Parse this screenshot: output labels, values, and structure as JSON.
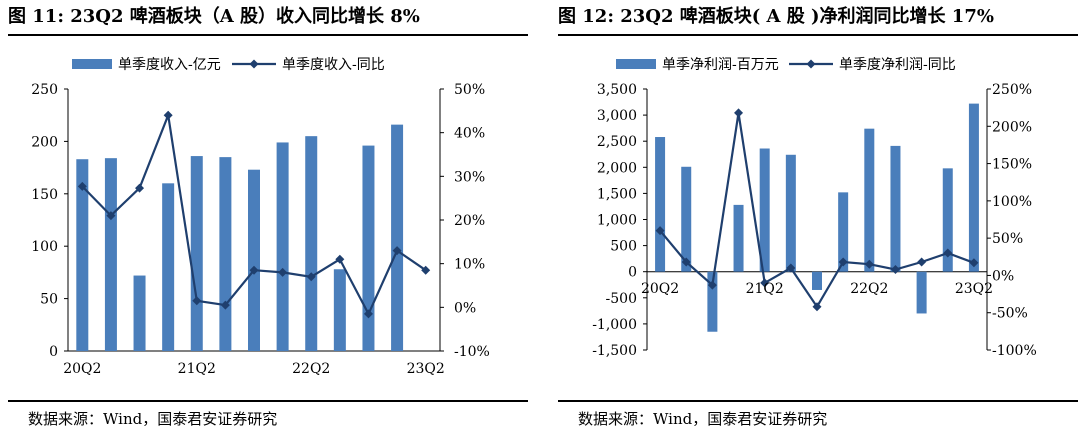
{
  "panels": [
    {
      "title": "图 11:  23Q2 啤酒板块（A 股）收入同比增长 8%",
      "source": "数据来源：Wind，国泰君安证券研究",
      "chart_data": {
        "type": "bar",
        "categories": [
          "20Q2",
          "20Q3",
          "20Q4",
          "21Q1",
          "21Q2",
          "21Q3",
          "21Q4",
          "22Q1",
          "22Q2",
          "22Q3",
          "22Q4",
          "23Q1",
          "23Q2"
        ],
        "x_tick_labels": [
          "20Q2",
          "21Q2",
          "22Q2",
          "23Q2"
        ],
        "series": [
          {
            "name": "单季度收入-亿元",
            "type": "bar",
            "axis": "left",
            "color": "#4a7ebb",
            "values": [
              183,
              184,
              72,
              160,
              186,
              185,
              173,
              199,
              205,
              78,
              196,
              216,
              0
            ]
          },
          {
            "name": "单季度收入-同比",
            "type": "line",
            "axis": "right",
            "color": "#1f3f6e",
            "values": [
              27.7,
              21.0,
              27.3,
              44.0,
              1.5,
              0.5,
              8.5,
              8.0,
              7.0,
              11.0,
              -1.5,
              13.0,
              8.5
            ]
          }
        ],
        "ylim": [
          0,
          250
        ],
        "yticks": [
          "0",
          "50",
          "100",
          "150",
          "200",
          "250"
        ],
        "y2lim": [
          -10,
          50
        ],
        "y2ticks": [
          "-10%",
          "0%",
          "10%",
          "20%",
          "30%",
          "40%",
          "50%"
        ],
        "legend_position": "top"
      }
    },
    {
      "title": "图 12: 23Q2 啤酒板块( A 股 )净利润同比增长 17%",
      "source": "数据来源：Wind，国泰君安证券研究",
      "chart_data": {
        "type": "bar",
        "categories": [
          "20Q2",
          "20Q3",
          "20Q4",
          "21Q1",
          "21Q2",
          "21Q3",
          "21Q4",
          "22Q1",
          "22Q2",
          "22Q3",
          "22Q4",
          "23Q1",
          "23Q2"
        ],
        "x_tick_labels": [
          "20Q2",
          "21Q2",
          "22Q2",
          "23Q2"
        ],
        "series": [
          {
            "name": "单季净利润-百万元",
            "type": "bar",
            "axis": "left",
            "color": "#4a7ebb",
            "values": [
              2580,
              2010,
              -1150,
              1280,
              2360,
              2240,
              -350,
              1520,
              2740,
              2410,
              -800,
              1980,
              3220
            ]
          },
          {
            "name": "单季度净利润-同比",
            "type": "line",
            "axis": "right",
            "color": "#1f3f6e",
            "values": [
              60,
              18,
              -13,
              218,
              -10,
              10,
              -42,
              18,
              15,
              8,
              18,
              30,
              17
            ]
          }
        ],
        "ylim": [
          -1500,
          3500
        ],
        "yticks": [
          "-1,500",
          "-1,000",
          "-500",
          "0",
          "500",
          "1,000",
          "1,500",
          "2,000",
          "2,500",
          "3,000",
          "3,500"
        ],
        "y2lim": [
          -100,
          250
        ],
        "y2ticks": [
          "-100%",
          "-50%",
          "0%",
          "50%",
          "100%",
          "150%",
          "200%",
          "250%"
        ],
        "legend_position": "top"
      }
    }
  ]
}
